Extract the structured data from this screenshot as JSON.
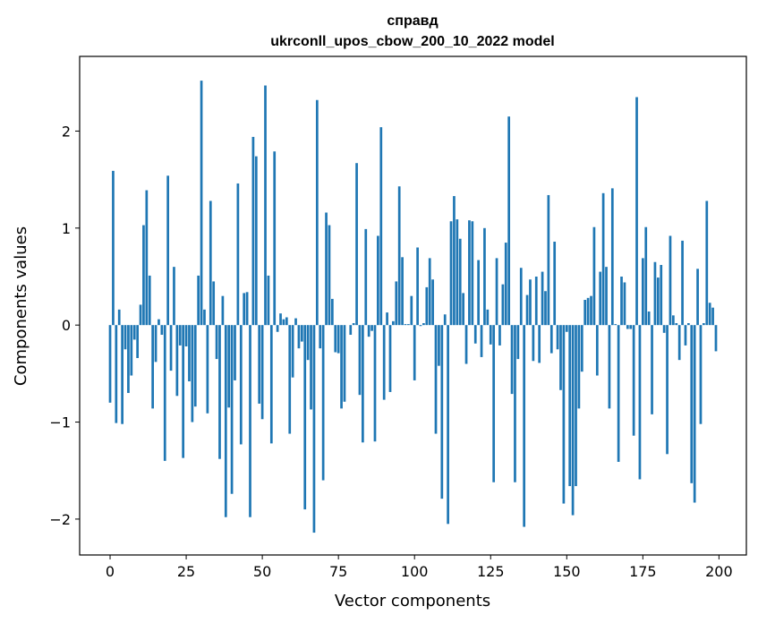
{
  "chart_data": {
    "type": "bar",
    "title_line1": "справд",
    "title_line2": "ukrconll_upos_cbow_200_10_2022 model",
    "xlabel": "Vector components",
    "ylabel": "Components values",
    "xlim": [
      -10,
      209
    ],
    "ylim": [
      -2.37,
      2.77
    ],
    "xticks": [
      0,
      25,
      50,
      75,
      100,
      125,
      150,
      175,
      200
    ],
    "xtick_labels": [
      "0",
      "25",
      "50",
      "75",
      "100",
      "125",
      "150",
      "175",
      "200"
    ],
    "yticks": [
      -2,
      -1,
      0,
      1,
      2
    ],
    "ytick_labels": [
      "−2",
      "−1",
      "0",
      "1",
      "2"
    ],
    "grid": false,
    "bar_color": "#1f77b4",
    "x": [
      0,
      1,
      2,
      3,
      4,
      5,
      6,
      7,
      8,
      9,
      10,
      11,
      12,
      13,
      14,
      15,
      16,
      17,
      18,
      19,
      20,
      21,
      22,
      23,
      24,
      25,
      26,
      27,
      28,
      29,
      30,
      31,
      32,
      33,
      34,
      35,
      36,
      37,
      38,
      39,
      40,
      41,
      42,
      43,
      44,
      45,
      46,
      47,
      48,
      49,
      50,
      51,
      52,
      53,
      54,
      55,
      56,
      57,
      58,
      59,
      60,
      61,
      62,
      63,
      64,
      65,
      66,
      67,
      68,
      69,
      70,
      71,
      72,
      73,
      74,
      75,
      76,
      77,
      78,
      79,
      80,
      81,
      82,
      83,
      84,
      85,
      86,
      87,
      88,
      89,
      90,
      91,
      92,
      93,
      94,
      95,
      96,
      97,
      98,
      99,
      100,
      101,
      102,
      103,
      104,
      105,
      106,
      107,
      108,
      109,
      110,
      111,
      112,
      113,
      114,
      115,
      116,
      117,
      118,
      119,
      120,
      121,
      122,
      123,
      124,
      125,
      126,
      127,
      128,
      129,
      130,
      131,
      132,
      133,
      134,
      135,
      136,
      137,
      138,
      139,
      140,
      141,
      142,
      143,
      144,
      145,
      146,
      147,
      148,
      149,
      150,
      151,
      152,
      153,
      154,
      155,
      156,
      157,
      158,
      159,
      160,
      161,
      162,
      163,
      164,
      165,
      166,
      167,
      168,
      169,
      170,
      171,
      172,
      173,
      174,
      175,
      176,
      177,
      178,
      179,
      180,
      181,
      182,
      183,
      184,
      185,
      186,
      187,
      188,
      189,
      190,
      191,
      192,
      193,
      194,
      195,
      196,
      197,
      198,
      199
    ],
    "values": [
      -0.8,
      1.59,
      -1.01,
      0.16,
      -1.02,
      -0.25,
      -0.7,
      -0.52,
      -0.15,
      -0.34,
      0.21,
      1.03,
      1.39,
      0.51,
      -0.86,
      -0.38,
      0.06,
      -0.1,
      -1.4,
      1.54,
      -0.47,
      0.6,
      -0.73,
      -0.21,
      -1.37,
      -0.22,
      -0.58,
      -1.0,
      -0.84,
      0.51,
      2.52,
      0.16,
      -0.91,
      1.28,
      0.45,
      -0.35,
      -1.38,
      0.3,
      -1.98,
      -0.85,
      -1.74,
      -0.57,
      1.46,
      -1.23,
      0.33,
      0.34,
      -1.98,
      1.94,
      1.74,
      -0.81,
      -0.97,
      2.47,
      0.51,
      -1.22,
      1.79,
      -0.07,
      0.12,
      0.06,
      0.08,
      -1.12,
      -0.54,
      0.07,
      -0.24,
      -0.17,
      -1.9,
      -0.36,
      -0.87,
      -2.14,
      2.32,
      -0.24,
      -1.6,
      1.16,
      1.03,
      0.27,
      -0.28,
      -0.29,
      -0.86,
      -0.79,
      0.0,
      -0.1,
      0.02,
      1.67,
      -0.72,
      -1.21,
      0.99,
      -0.12,
      -0.06,
      -1.2,
      0.92,
      2.04,
      -0.77,
      0.13,
      -0.69,
      0.04,
      0.45,
      1.43,
      0.7,
      0.01,
      0.01,
      0.3,
      -0.57,
      0.8,
      -0.01,
      0.02,
      0.39,
      0.69,
      0.47,
      -1.12,
      -0.42,
      -1.79,
      0.11,
      -2.05,
      1.07,
      1.33,
      1.09,
      0.89,
      0.33,
      -0.4,
      1.08,
      1.07,
      -0.19,
      0.67,
      -0.33,
      1.0,
      0.16,
      -0.2,
      -1.62,
      0.69,
      -0.21,
      0.42,
      0.85,
      2.15,
      -0.71,
      -1.62,
      -0.35,
      0.59,
      -2.08,
      0.31,
      0.47,
      -0.37,
      0.5,
      -0.39,
      0.55,
      0.35,
      1.34,
      -0.29,
      0.86,
      -0.25,
      -0.67,
      -1.84,
      -0.07,
      -1.66,
      -1.96,
      -1.66,
      -0.86,
      -0.48,
      0.26,
      0.28,
      0.3,
      1.01,
      -0.52,
      0.55,
      1.36,
      0.6,
      -0.86,
      1.41,
      0.01,
      -1.41,
      0.5,
      0.44,
      -0.04,
      -0.04,
      -1.14,
      2.35,
      -1.59,
      0.69,
      1.01,
      0.14,
      -0.92,
      0.65,
      0.49,
      0.62,
      -0.08,
      -1.33,
      0.92,
      0.1,
      0.02,
      -0.36,
      0.87,
      -0.21,
      0.02,
      -1.63,
      -1.83,
      0.58,
      -1.02,
      0.02,
      1.28,
      0.23,
      0.18,
      -0.27
    ]
  }
}
